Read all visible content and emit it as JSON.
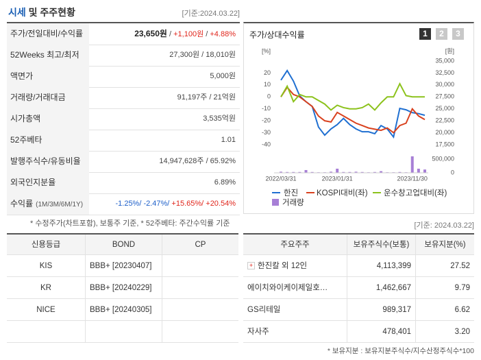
{
  "header": {
    "title_highlight": "시세",
    "title_rest": "및 주주현황",
    "date": "[기준:2024.03.22]"
  },
  "summary": {
    "rows": [
      {
        "label": "주가/전일대비/수익률",
        "values": [
          "23,650원",
          " / ",
          "+1,100원",
          " / ",
          "+4.88%"
        ]
      },
      {
        "label": "52Weeks 최고/최저",
        "values": [
          "27,300원 / 18,010원"
        ]
      },
      {
        "label": "액면가",
        "values": [
          "5,000원"
        ]
      },
      {
        "label": "거래량/거래대금",
        "values": [
          "91,197주 / 21억원"
        ]
      },
      {
        "label": "시가총액",
        "values": [
          "3,535억원"
        ]
      },
      {
        "label": "52주베타",
        "values": [
          "1.01"
        ]
      },
      {
        "label": "발행주식수/유동비율",
        "values": [
          "14,947,628주 / 65.92%"
        ]
      },
      {
        "label": "외국인지분율",
        "values": [
          "6.89%"
        ]
      },
      {
        "label": "수익률",
        "sublabel": "(1M/3M/6M/1Y)",
        "values": [
          "-1.25%/ ",
          "-2.47%/ ",
          "+15.65%/ ",
          "+20.54%"
        ]
      }
    ],
    "note": "* 수정주가(차트포함), 보통주 기준, * 52주베타: 주간수익률 기준"
  },
  "chart": {
    "type": "line",
    "title": "주가/상대수익률",
    "buttons": [
      "1",
      "2",
      "3"
    ],
    "y_unit": "[%]",
    "y2_unit": "[원]",
    "categories": [
      "2022/03/31",
      null,
      null,
      null,
      null,
      null,
      null,
      null,
      null,
      "2023/01/31",
      null,
      null,
      null,
      null,
      null,
      null,
      null,
      null,
      null,
      null,
      null,
      "2023/11/30",
      null,
      null
    ],
    "ylim": [
      -40,
      30
    ],
    "yticks": [
      20,
      10,
      0,
      -10,
      -20,
      -30,
      -40
    ],
    "y2lim": [
      17500,
      35000
    ],
    "y2ticks": [
      {
        "value": 35000,
        "label": "35,000"
      },
      {
        "value": 32500,
        "label": "32,500"
      },
      {
        "value": 30000,
        "label": "30,000"
      },
      {
        "value": 27500,
        "label": "27,500"
      },
      {
        "value": 25000,
        "label": "25,000"
      },
      {
        "value": 22500,
        "label": "22,500"
      },
      {
        "value": 20000,
        "label": "20,000"
      },
      {
        "value": 17500,
        "label": "17,500"
      }
    ],
    "series": [
      {
        "name": "한진",
        "color": "#1f6fd1",
        "axis": "y2",
        "values": [
          31000,
          33000,
          30800,
          27700,
          26500,
          25500,
          21200,
          19500,
          20800,
          21700,
          23000,
          21700,
          20800,
          20200,
          20200,
          19800,
          21500,
          20800,
          19100,
          25100,
          24800,
          24200,
          24000,
          23650
        ]
      },
      {
        "name": "KOSPI대비(좌)",
        "color": "#d9411e",
        "values": [
          0,
          8,
          2,
          0,
          -4,
          -8,
          -16,
          -20,
          -21,
          -13,
          -16,
          -19,
          -22,
          -24,
          -26,
          -27,
          -28,
          -26,
          -30,
          -24,
          -22,
          -10,
          -16,
          -19
        ]
      },
      {
        "name": "운수창고업대비(좌)",
        "color": "#8cc21c",
        "values": [
          0,
          9,
          -4,
          2,
          0,
          0,
          -3,
          -6,
          -11,
          -7,
          -9,
          -10,
          -10,
          -9,
          -6,
          -11,
          -5,
          0,
          0,
          11,
          1,
          0,
          0,
          0
        ]
      }
    ],
    "volume": {
      "name": "거래량",
      "color": "#a77fd6",
      "ylim": [
        0,
        600000
      ],
      "yticks": [
        {
          "value": 500000,
          "label": "500,000"
        },
        0
      ],
      "values": [
        40000,
        30000,
        30000,
        30000,
        100000,
        30000,
        20000,
        20000,
        40000,
        150000,
        30000,
        30000,
        40000,
        30000,
        20000,
        30000,
        60000,
        20000,
        20000,
        30000,
        20000,
        600000,
        150000,
        120000
      ]
    }
  },
  "credit": {
    "headers": [
      "신용등급",
      "BOND",
      "CP"
    ],
    "rows": [
      [
        "KIS",
        "BBB+ [20230407]"
      ],
      [
        "KR",
        "BBB+ [20240229]"
      ],
      [
        "NICE",
        "BBB+ [20240305]"
      ]
    ]
  },
  "shareholders": {
    "date": "[기준: 2024.03.22]",
    "headers": [
      "주요주주",
      "보유주식수(보통)",
      "보유지분(%)"
    ],
    "rows": [
      [
        "한진칼 외 12인",
        "4,113,399",
        "27.52"
      ],
      [
        "에이치와이케이제일호…",
        "1,462,667",
        "9.79"
      ],
      [
        "GS리테일",
        "989,317",
        "6.62"
      ],
      [
        "자사주",
        "478,401",
        "3.20"
      ]
    ],
    "note": "* 보유지분 : 보유지분주식수/지수산정주식수*100"
  }
}
